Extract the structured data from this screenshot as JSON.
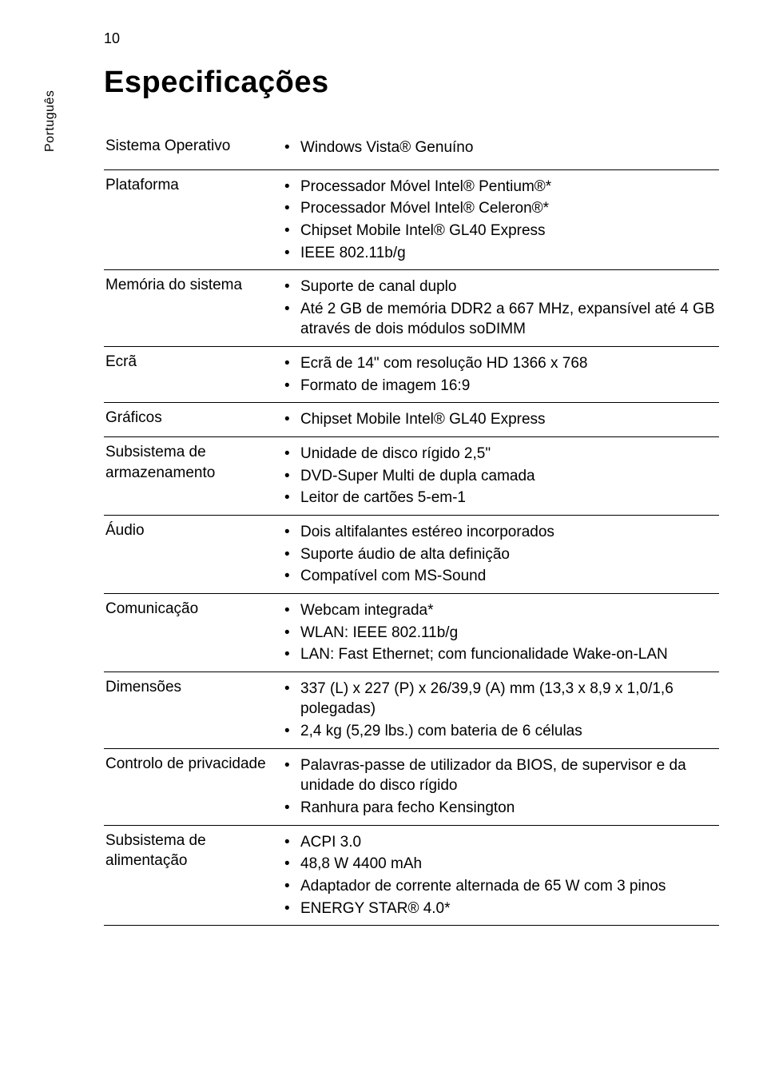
{
  "page_number": "10",
  "sidebar_text": "Português",
  "title": "Especificações",
  "table": {
    "rows": [
      {
        "label": "Sistema Operativo",
        "items": [
          "Windows Vista® Genuíno"
        ],
        "css": "row-os"
      },
      {
        "label": "Plataforma",
        "items": [
          "Processador Móvel Intel® Pentium®*",
          "Processador Móvel Intel® Celeron®*",
          "Chipset Mobile Intel® GL40 Express",
          "IEEE 802.11b/g"
        ]
      },
      {
        "label": "Memória do sistema",
        "items": [
          "Suporte de canal duplo",
          "Até 2 GB de memória DDR2 a 667 MHz, expansível até 4 GB através de dois módulos soDIMM"
        ]
      },
      {
        "label": "Ecrã",
        "items": [
          "Ecrã de 14\" com resolução HD 1366 x 768",
          "Formato de imagem 16:9"
        ]
      },
      {
        "label": "Gráficos",
        "items": [
          "Chipset Mobile Intel® GL40 Express"
        ]
      },
      {
        "label": "Subsistema de armazenamento",
        "items": [
          "Unidade de disco rígido 2,5\"",
          "DVD-Super Multi de dupla camada",
          "Leitor de cartões 5-em-1"
        ]
      },
      {
        "label": "Áudio",
        "items": [
          "Dois altifalantes estéreo incorporados",
          "Suporte áudio de alta definição",
          "Compatível com MS-Sound"
        ]
      },
      {
        "label": "Comunicação",
        "items": [
          "Webcam integrada*",
          "WLAN: IEEE 802.11b/g",
          "LAN: Fast Ethernet; com funcionalidade Wake-on-LAN"
        ]
      },
      {
        "label": "Dimensões",
        "items": [
          "337 (L) x 227 (P) x 26/39,9 (A) mm (13,3 x 8,9 x 1,0/1,6 polegadas)",
          "2,4 kg (5,29 lbs.) com bateria de 6 células"
        ]
      },
      {
        "label": "Controlo de privacidade",
        "items": [
          "Palavras-passe de utilizador da BIOS, de supervisor e da unidade do disco rígido",
          "Ranhura para fecho Kensington"
        ]
      },
      {
        "label": "Subsistema de alimentação",
        "items": [
          "ACPI 3.0",
          "48,8 W 4400 mAh",
          "Adaptador de corrente alternada de 65 W com 3 pinos",
          "ENERGY STAR® 4.0*"
        ]
      }
    ]
  }
}
